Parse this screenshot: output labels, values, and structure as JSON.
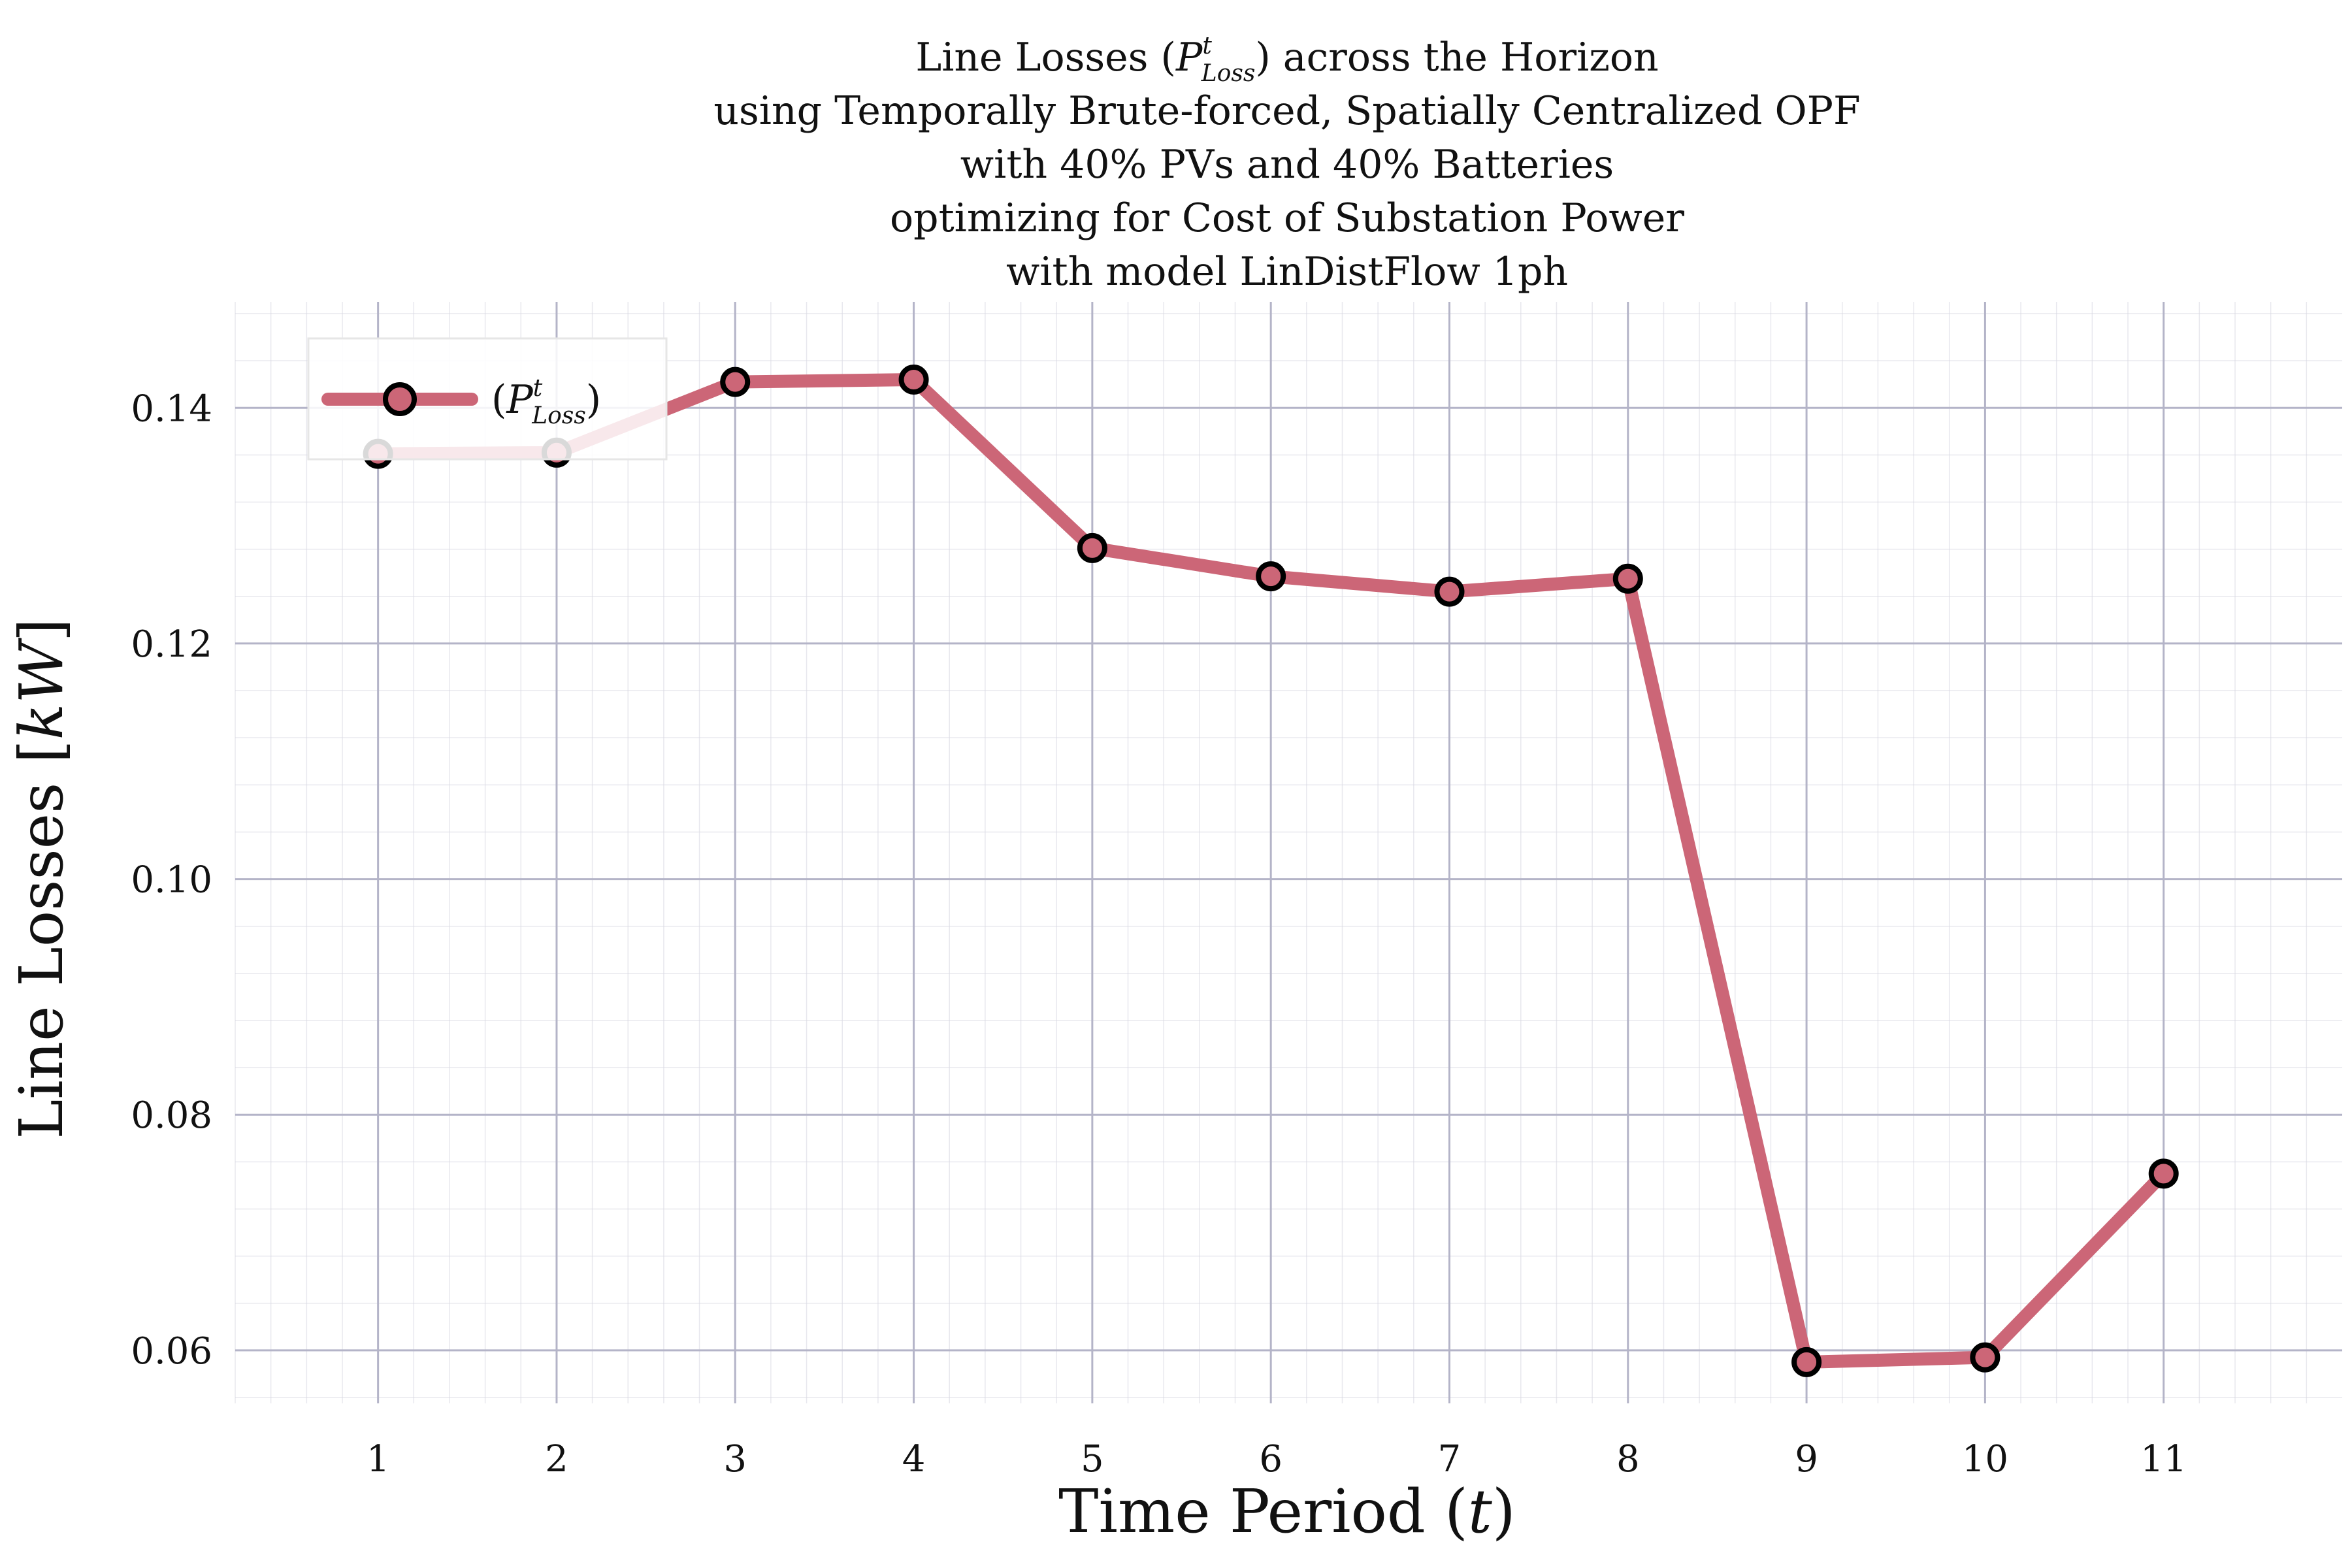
{
  "chart_data": {
    "type": "line",
    "title_lines": [
      "Line Losses (P_Loss^t) across the Horizon",
      "using Temporally Brute-forced, Spatially Centralized OPF",
      "with 40% PVs and 40% Batteries",
      "optimizing for Cost of Substation Power",
      "with model LinDistFlow 1ph"
    ],
    "title_parts": {
      "line1_before": "Line Losses (",
      "symbol": "P",
      "sup": "t",
      "sub": "Loss",
      "line1_after": ") across the Horizon"
    },
    "xlabel": {
      "before": "Time Period (",
      "var": "t",
      "after": ")"
    },
    "ylabel": {
      "before": "Line Losses [",
      "var": "kW",
      "after": "]"
    },
    "legend": {
      "open": "(",
      "symbol": "P",
      "sup": "t",
      "sub": "Loss",
      "close": ")",
      "placement": "top-left"
    },
    "x_ticks": [
      1,
      2,
      3,
      4,
      5,
      6,
      7,
      8,
      9,
      10,
      11
    ],
    "y_ticks": [
      0.06,
      0.08,
      0.1,
      0.12,
      0.14
    ],
    "y_tick_labels": [
      "0.06",
      "0.08",
      "0.10",
      "0.12",
      "0.14"
    ],
    "xlim": [
      0.2,
      12.0
    ],
    "ylim": [
      0.0555,
      0.149
    ],
    "grid": true,
    "series": [
      {
        "x": [
          1,
          2,
          3,
          4,
          5,
          6,
          7,
          8,
          9,
          10,
          11
        ],
        "values": [
          0.1361,
          0.1362,
          0.1422,
          0.1424,
          0.1281,
          0.1257,
          0.1244,
          0.1255,
          0.059,
          0.0594,
          0.075
        ],
        "color": "#cc6677",
        "marker_fill": "#cc6677",
        "marker_edge": "#000000"
      }
    ]
  }
}
